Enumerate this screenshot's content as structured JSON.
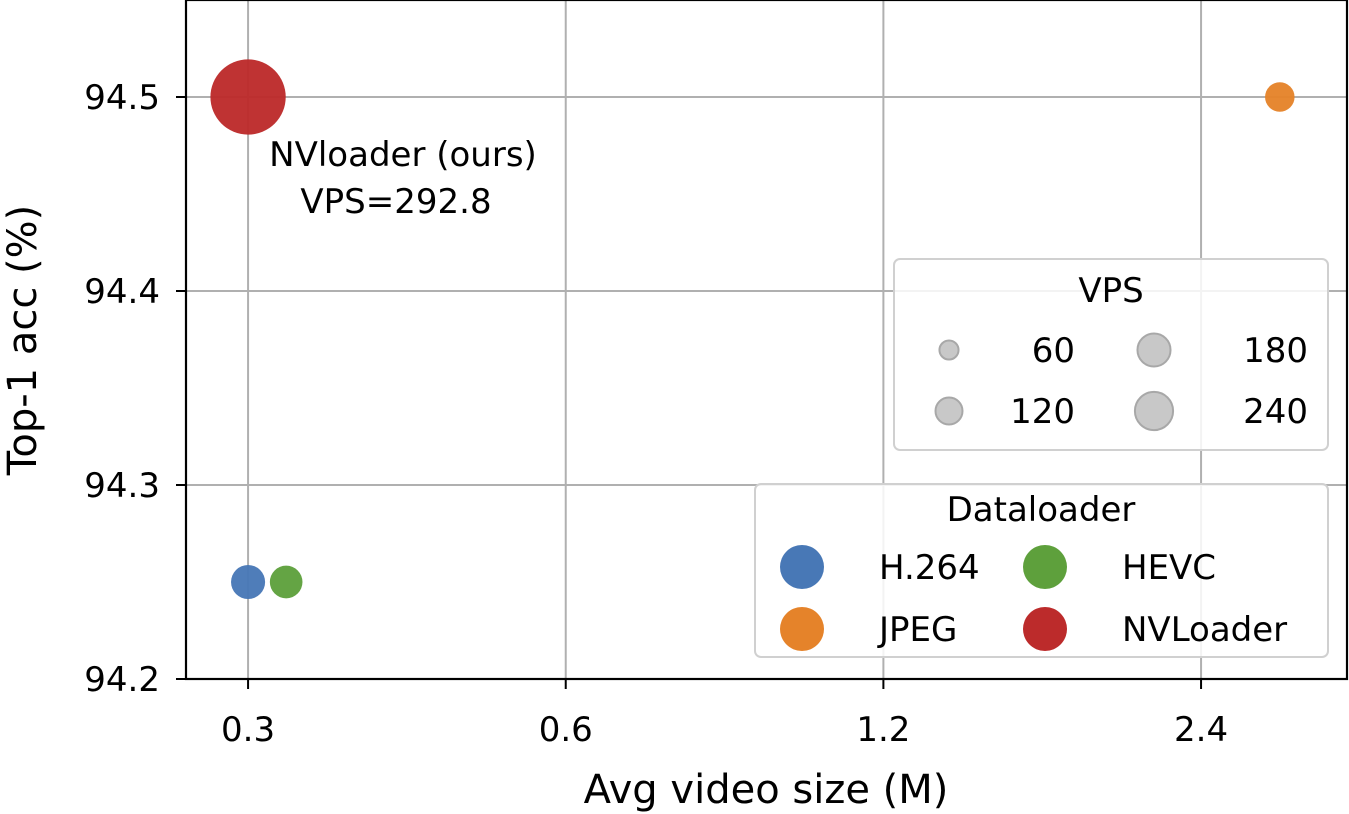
{
  "chart_data": {
    "type": "scatter",
    "xlabel": "Avg video size (M)",
    "ylabel": "Top-1 acc (%)",
    "x_scale": "log2",
    "x_ticks": [
      0.3,
      0.6,
      1.2,
      2.4
    ],
    "x_tick_labels": [
      "0.3",
      "0.6",
      "1.2",
      "2.4"
    ],
    "xlim": [
      0.262,
      3.3
    ],
    "y_ticks": [
      94.2,
      94.3,
      94.4,
      94.5
    ],
    "y_tick_labels": [
      "94.2",
      "94.3",
      "94.4",
      "94.5"
    ],
    "ylim": [
      94.2,
      94.55
    ],
    "grid": true,
    "series": [
      {
        "name": "H.264",
        "color": "#4878b6",
        "x": 0.3,
        "y": 94.25,
        "vps": 60
      },
      {
        "name": "HEVC",
        "color": "#5ea03c",
        "x": 0.326,
        "y": 94.25,
        "vps": 55
      },
      {
        "name": "JPEG",
        "color": "#e5832a",
        "x": 2.85,
        "y": 94.5,
        "vps": 45
      },
      {
        "name": "NVLoader",
        "color": "#bc2b2b",
        "x": 0.3,
        "y": 94.5,
        "vps": 292.8
      }
    ],
    "annotation": {
      "line1": "NVloader (ours)",
      "line2": "VPS=292.8"
    },
    "size_legend": {
      "title": "VPS",
      "placement": "center-right",
      "items": [
        {
          "label": "60",
          "vps": 60
        },
        {
          "label": "180",
          "vps": 180
        },
        {
          "label": "120",
          "vps": 120
        },
        {
          "label": "240",
          "vps": 240
        }
      ]
    },
    "color_legend": {
      "title": "Dataloader",
      "placement": "lower-right",
      "items": [
        {
          "label": "H.264",
          "color": "#4878b6"
        },
        {
          "label": "HEVC",
          "color": "#5ea03c"
        },
        {
          "label": "JPEG",
          "color": "#e5832a"
        },
        {
          "label": "NVLoader",
          "color": "#bc2b2b"
        }
      ]
    }
  }
}
